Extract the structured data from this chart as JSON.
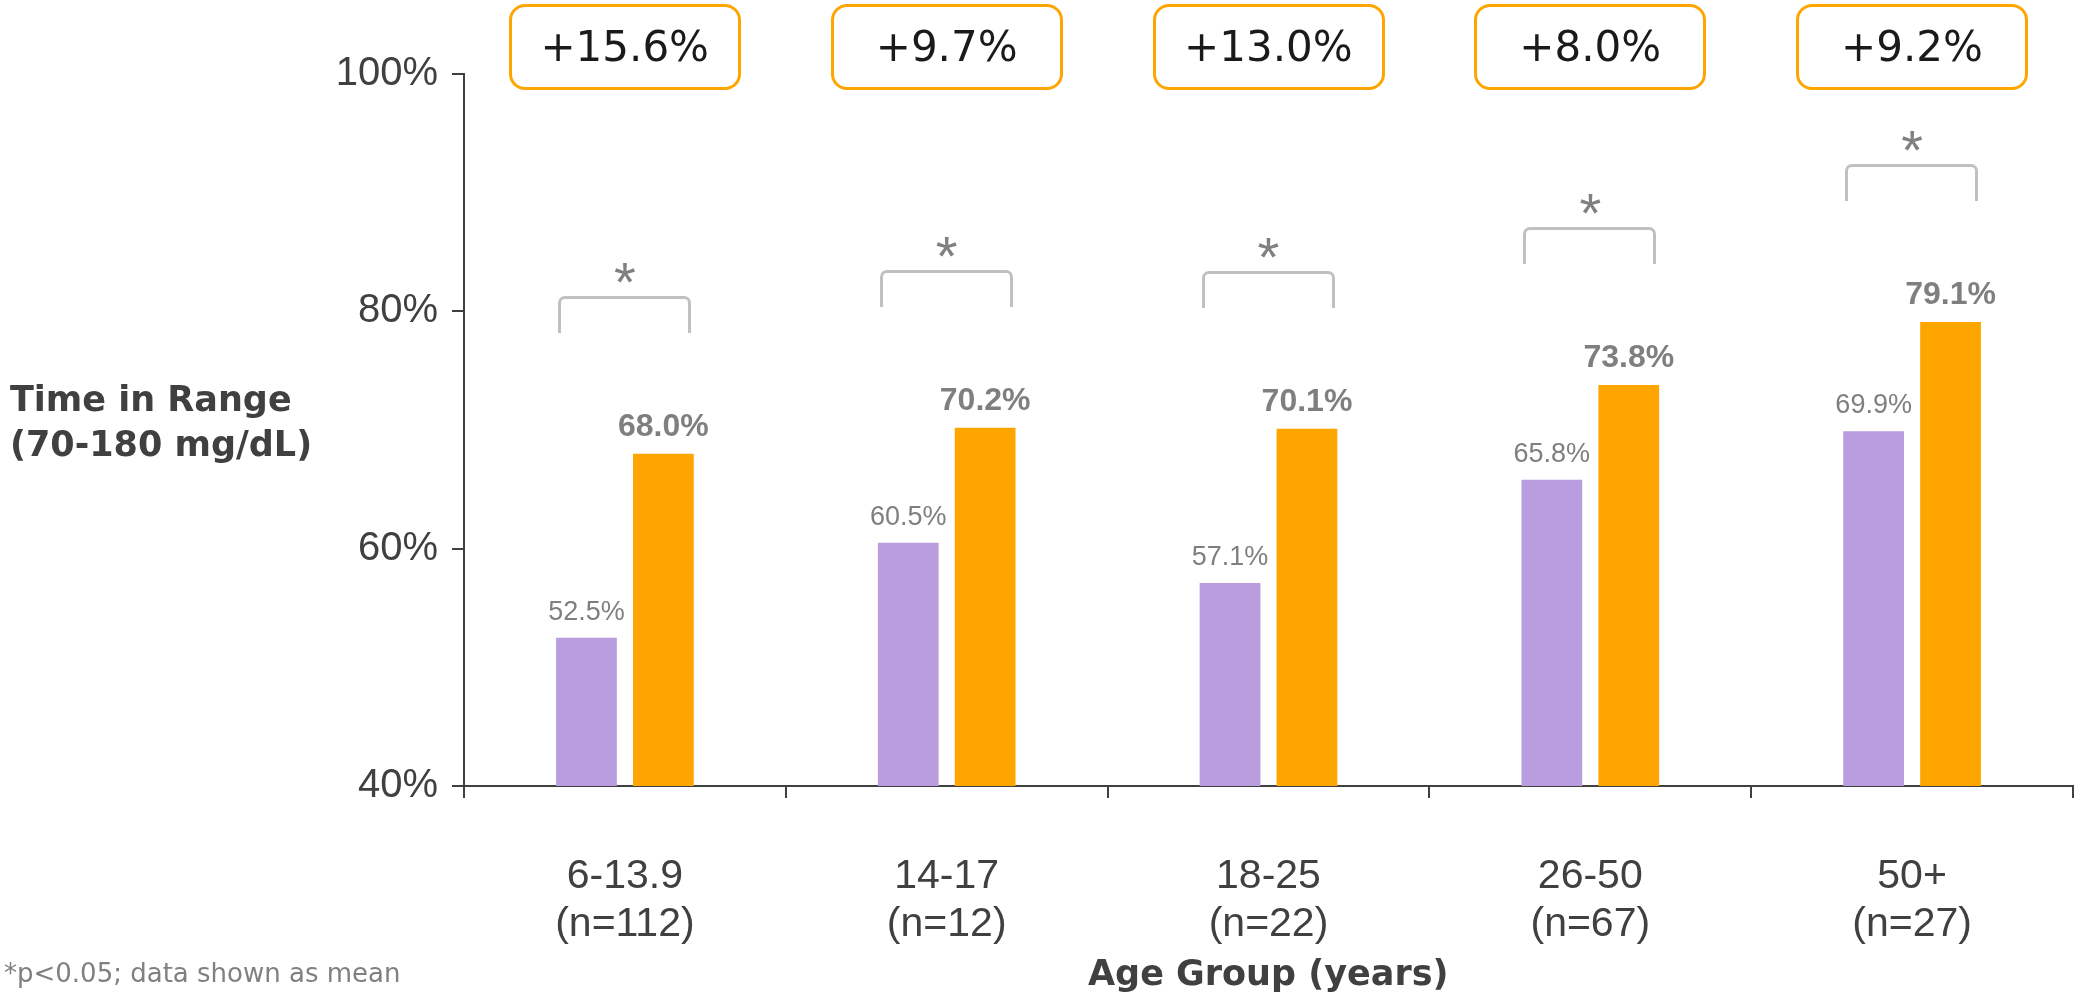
{
  "chart_data": {
    "type": "bar",
    "categories": [
      "6-13.9\n(n=112)",
      "14-17\n(n=12)",
      "18-25\n(n=22)",
      "26-50\n(n=67)",
      "50+\n(n=27)"
    ],
    "series": [
      {
        "color": "#b99ddf",
        "values": [
          52.5,
          60.5,
          57.1,
          65.8,
          69.9
        ],
        "value_labels": [
          "52.5%",
          "60.5%",
          "57.1%",
          "65.8%",
          "69.9%"
        ]
      },
      {
        "color": "#ffa500",
        "values": [
          68.0,
          70.2,
          70.1,
          73.8,
          79.1
        ],
        "value_labels": [
          "68.0%",
          "70.2%",
          "70.1%",
          "73.8%",
          "79.1%"
        ]
      }
    ],
    "xlabel": "Age Group (years)",
    "ylabel": "Time in Range\n(70-180 mg/dL)",
    "ylim": [
      40,
      100
    ],
    "yticks": [
      {
        "value": 40,
        "label": "40%"
      },
      {
        "value": 60,
        "label": "60%"
      },
      {
        "value": 80,
        "label": "80%"
      },
      {
        "value": 100,
        "label": "100%"
      }
    ],
    "annotations": [
      "+15.6%",
      "+9.7%",
      "+13.0%",
      "+8.0%",
      "+9.2%",
      "*",
      "*",
      "*",
      "*",
      "*",
      "*p<0.05; data shown as mean"
    ]
  }
}
